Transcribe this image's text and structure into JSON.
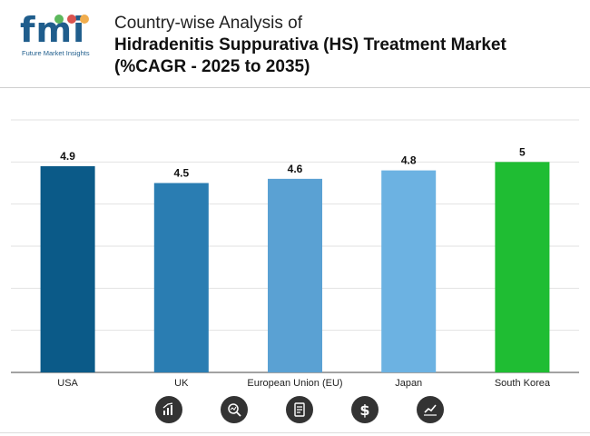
{
  "brand": {
    "logo_text": "fmi",
    "tagline": "Future Market Insights"
  },
  "title": {
    "line1": "Country-wise Analysis of",
    "line2": "Hidradenitis Suppurativa (HS) Treatment Market",
    "line3": "(%CAGR - 2025 to 2035)"
  },
  "chart_data": {
    "type": "bar",
    "categories": [
      "USA",
      "UK",
      "European Union (EU)",
      "Japan",
      "South Korea"
    ],
    "values": [
      4.9,
      4.5,
      4.6,
      4.8,
      5
    ],
    "value_labels": [
      "4.9",
      "4.5",
      "4.6",
      "4.8",
      "5"
    ],
    "bar_colors": [
      "#0b5a88",
      "#2a7db2",
      "#5aa1d3",
      "#6cb2e2",
      "#1fbd33"
    ],
    "ylim": [
      0,
      6
    ],
    "grid": true,
    "xlabel": "",
    "ylabel": ""
  },
  "footer_icons": [
    "bar-chart-icon",
    "magnifier-chart-icon",
    "report-document-icon",
    "dollar-icon",
    "trend-line-icon"
  ],
  "colors": {
    "brand_blue": "#1f5d8c",
    "icon_bg": "#333333",
    "grid": "#e2e2e2"
  }
}
